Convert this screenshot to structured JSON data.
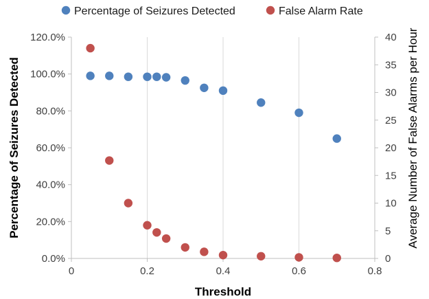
{
  "chart_data": {
    "type": "scatter",
    "xlabel": "Threshold",
    "ylabel": "Percentage of Seizures Detected",
    "y2label": "Average Number of False Alarms per Hour",
    "xlim": [
      0,
      0.8
    ],
    "ylim": [
      0,
      120
    ],
    "y2lim": [
      0,
      40
    ],
    "x_ticks": [
      "0",
      "0.2",
      "0.4",
      "0.6",
      "0.8"
    ],
    "y_ticks": [
      "0.0%",
      "20.0%",
      "40.0%",
      "60.0%",
      "80.0%",
      "100.0%",
      "120.0%"
    ],
    "y2_ticks": [
      "0",
      "5",
      "10",
      "15",
      "20",
      "25",
      "30",
      "35",
      "40"
    ],
    "vertical_grid": true,
    "legend_position": "top",
    "series": [
      {
        "name": "Percentage of Seizures Detected",
        "axis": "left",
        "color": "#4F81BD",
        "x": [
          0.05,
          0.1,
          0.15,
          0.2,
          0.225,
          0.25,
          0.3,
          0.35,
          0.4,
          0.5,
          0.6,
          0.7
        ],
        "y": [
          99.0,
          99.0,
          98.5,
          98.5,
          98.5,
          98.2,
          96.5,
          92.5,
          91.0,
          84.5,
          79.0,
          65.0
        ]
      },
      {
        "name": "False Alarm Rate",
        "axis": "right",
        "color": "#C0504D",
        "x": [
          0.05,
          0.1,
          0.15,
          0.2,
          0.225,
          0.25,
          0.3,
          0.35,
          0.4,
          0.5,
          0.6,
          0.7
        ],
        "y": [
          38.0,
          17.7,
          10.0,
          6.0,
          4.7,
          3.6,
          2.0,
          1.2,
          0.6,
          0.4,
          0.2,
          0.1
        ]
      }
    ]
  }
}
